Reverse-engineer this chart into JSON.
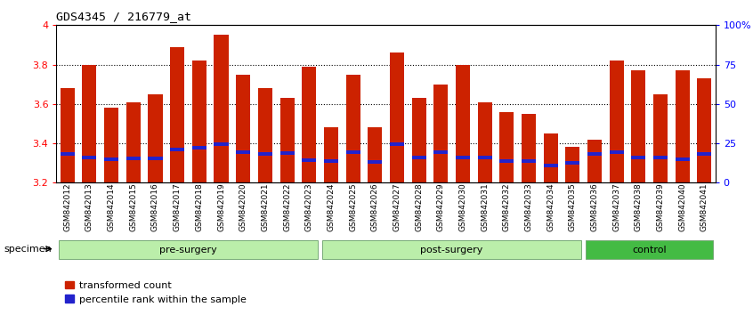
{
  "title": "GDS4345 / 216779_at",
  "samples": [
    "GSM842012",
    "GSM842013",
    "GSM842014",
    "GSM842015",
    "GSM842016",
    "GSM842017",
    "GSM842018",
    "GSM842019",
    "GSM842020",
    "GSM842021",
    "GSM842022",
    "GSM842023",
    "GSM842024",
    "GSM842025",
    "GSM842026",
    "GSM842027",
    "GSM842028",
    "GSM842029",
    "GSM842030",
    "GSM842031",
    "GSM842032",
    "GSM842033",
    "GSM842034",
    "GSM842035",
    "GSM842036",
    "GSM842037",
    "GSM842038",
    "GSM842039",
    "GSM842040",
    "GSM842041"
  ],
  "transformed_count": [
    3.68,
    3.8,
    3.58,
    3.61,
    3.65,
    3.89,
    3.82,
    3.95,
    3.75,
    3.68,
    3.63,
    3.79,
    3.48,
    3.75,
    3.48,
    3.86,
    3.63,
    3.7,
    3.8,
    3.61,
    3.56,
    3.55,
    3.45,
    3.38,
    3.42,
    3.82,
    3.77,
    3.65,
    3.77,
    3.73
  ],
  "percentile_rank": [
    3.335,
    3.32,
    3.31,
    3.315,
    3.315,
    3.36,
    3.37,
    3.385,
    3.345,
    3.335,
    3.34,
    3.305,
    3.3,
    3.345,
    3.295,
    3.385,
    3.32,
    3.345,
    3.32,
    3.32,
    3.3,
    3.3,
    3.28,
    3.29,
    3.335,
    3.345,
    3.32,
    3.32,
    3.31,
    3.335
  ],
  "ymin": 3.2,
  "ymax": 4.0,
  "bar_color": "#cc2200",
  "blue_color": "#2222cc",
  "groups": [
    {
      "label": "pre-surgery",
      "start": 0,
      "end": 12,
      "color": "#bbeeaa"
    },
    {
      "label": "post-surgery",
      "start": 12,
      "end": 24,
      "color": "#bbeeaa"
    },
    {
      "label": "control",
      "start": 24,
      "end": 30,
      "color": "#44bb44"
    }
  ],
  "right_yticks": [
    0,
    25,
    50,
    75,
    100
  ],
  "right_yticklabels": [
    "0",
    "25",
    "50",
    "75",
    "100%"
  ],
  "legend1": "transformed count",
  "legend2": "percentile rank within the sample"
}
